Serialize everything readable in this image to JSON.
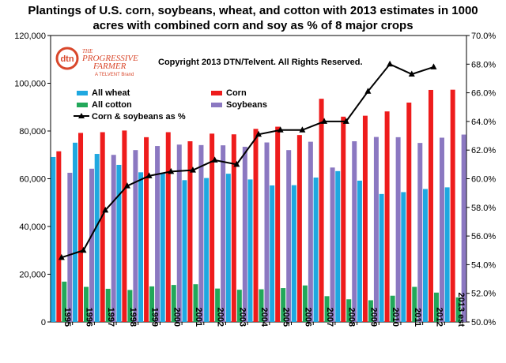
{
  "chart_data": {
    "type": "bar",
    "title_lines": [
      "Plantings of U.S. corn, soybeans, wheat, and cotton with 2013 estimates in 1000",
      "acres with combined corn and soy as %  of 8 major crops"
    ],
    "copyright": "Copyright 2013 DTN/Telvent. All Rights Reserved.",
    "logo": {
      "badge": "dtn",
      "line1": "THE",
      "line2": "PROGRESSIVE",
      "line3": "FARMER",
      "tagline": "A TELVENT Brand"
    },
    "categories": [
      "1995",
      "1996",
      "1997",
      "1998",
      "1999",
      "2000",
      "2001",
      "2002",
      "2003",
      "2004",
      "2005",
      "2006",
      "2007",
      "2008",
      "2009",
      "2010",
      "2011",
      "2012",
      "2013 est"
    ],
    "series": [
      {
        "name": "All wheat",
        "color": "#1fa8e0",
        "values": [
          69100,
          75100,
          70400,
          65800,
          62700,
          62500,
          59400,
          60300,
          62100,
          59700,
          57200,
          57300,
          60500,
          63200,
          59200,
          53600,
          54400,
          55700,
          56400
        ]
      },
      {
        "name": "Corn",
        "color": "#ee1c1c",
        "values": [
          71500,
          79200,
          79500,
          80200,
          77400,
          79500,
          75700,
          78900,
          78600,
          80900,
          81800,
          78300,
          93500,
          86000,
          86400,
          88200,
          91900,
          97200,
          97300
        ]
      },
      {
        "name": "All cotton",
        "color": "#22a85a",
        "values": [
          16900,
          14700,
          13900,
          13400,
          14900,
          15500,
          15800,
          14000,
          13500,
          13700,
          14200,
          15300,
          10800,
          9500,
          9100,
          11000,
          14700,
          12300,
          10300
        ]
      },
      {
        "name": "Soybeans",
        "color": "#8b78c1",
        "values": [
          62500,
          64200,
          70000,
          72000,
          73700,
          74300,
          74100,
          74000,
          73400,
          75200,
          72000,
          75500,
          64700,
          75700,
          77500,
          77400,
          75000,
          77200,
          78500
        ]
      }
    ],
    "line_series": {
      "name": "Corn & soybeans as %",
      "color": "#000000",
      "values": [
        54.5,
        55.0,
        57.8,
        59.5,
        60.2,
        60.5,
        60.6,
        61.3,
        61.0,
        63.1,
        63.4,
        63.4,
        64.0,
        64.0,
        66.1,
        68.0,
        67.3,
        67.8,
        null
      ]
    },
    "ylim": [
      0,
      120000
    ],
    "y_ticks": [
      "0",
      "20,000",
      "40,000",
      "60,000",
      "80,000",
      "100,000",
      "120,000"
    ],
    "y2lim": [
      50,
      70
    ],
    "y2_ticks": [
      "50.0%",
      "52.0%",
      "54.0%",
      "56.0%",
      "58.0%",
      "60.0%",
      "62.0%",
      "64.0%",
      "66.0%",
      "68.0%",
      "70.0%"
    ],
    "grid": false,
    "legend_position": "top-left"
  }
}
